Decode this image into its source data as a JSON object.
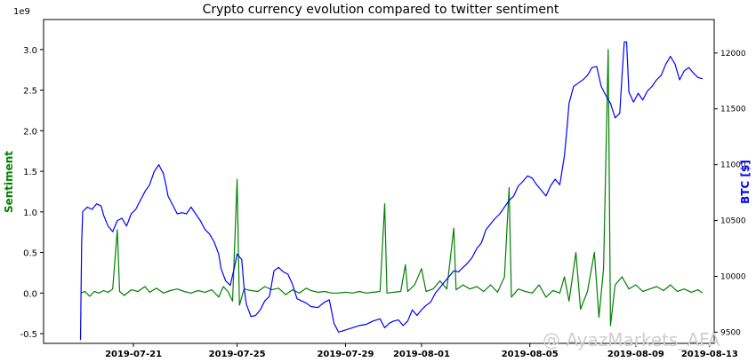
{
  "chart_data": {
    "type": "line",
    "title": "Crypto currency evolution compared to twitter sentiment",
    "xlabel": "",
    "x_ticks": [
      "2019-07-21",
      "2019-07-25",
      "2019-07-29",
      "2019-08-01",
      "2019-08-05",
      "2019-08-09",
      "2019-08-13"
    ],
    "y_left": {
      "label": "Sentiment",
      "multiplier_label": "1e9",
      "ticks": [
        "-0.5",
        "0.0",
        "0.5",
        "1.0",
        "1.5",
        "2.0",
        "2.5",
        "3.0"
      ],
      "range": [
        -0.62,
        3.37
      ],
      "color": "#008000"
    },
    "y_right": {
      "label": "BTC [$]",
      "ticks": [
        "9500",
        "10000",
        "10500",
        "11000",
        "11500",
        "12000"
      ],
      "range": [
        9400,
        12300
      ],
      "color": "#0000ff"
    },
    "x_range": [
      -1.6,
      27.5
    ],
    "series": [
      {
        "name": "BTC [$]",
        "axis": "right",
        "color": "#0000ff",
        "points": [
          [
            0.0,
            9430
          ],
          [
            0.05,
            10300
          ],
          [
            0.1,
            10580
          ],
          [
            0.3,
            10620
          ],
          [
            0.5,
            10600
          ],
          [
            0.7,
            10650
          ],
          [
            0.9,
            10630
          ],
          [
            1.0,
            10550
          ],
          [
            1.2,
            10450
          ],
          [
            1.4,
            10400
          ],
          [
            1.6,
            10500
          ],
          [
            1.8,
            10520
          ],
          [
            2.0,
            10450
          ],
          [
            2.2,
            10560
          ],
          [
            2.4,
            10600
          ],
          [
            2.6,
            10680
          ],
          [
            2.8,
            10760
          ],
          [
            3.0,
            10820
          ],
          [
            3.2,
            10940
          ],
          [
            3.4,
            11000
          ],
          [
            3.6,
            10920
          ],
          [
            3.7,
            10830
          ],
          [
            3.8,
            10720
          ],
          [
            3.9,
            10680
          ],
          [
            4.0,
            10640
          ],
          [
            4.2,
            10560
          ],
          [
            4.4,
            10570
          ],
          [
            4.6,
            10560
          ],
          [
            4.8,
            10620
          ],
          [
            5.0,
            10560
          ],
          [
            5.2,
            10500
          ],
          [
            5.4,
            10420
          ],
          [
            5.6,
            10380
          ],
          [
            5.8,
            10310
          ],
          [
            6.0,
            10200
          ],
          [
            6.1,
            10070
          ],
          [
            6.3,
            9960
          ],
          [
            6.5,
            9920
          ],
          [
            6.7,
            10100
          ],
          [
            6.8,
            10200
          ],
          [
            7.0,
            10150
          ],
          [
            7.1,
            9900
          ],
          [
            7.2,
            9750
          ],
          [
            7.4,
            9640
          ],
          [
            7.6,
            9650
          ],
          [
            7.8,
            9700
          ],
          [
            8.0,
            9780
          ],
          [
            8.2,
            9820
          ],
          [
            8.4,
            10050
          ],
          [
            8.6,
            10080
          ],
          [
            8.8,
            10040
          ],
          [
            9.0,
            10020
          ],
          [
            9.2,
            9930
          ],
          [
            9.4,
            9800
          ],
          [
            9.6,
            9780
          ],
          [
            9.8,
            9760
          ],
          [
            10.0,
            9730
          ],
          [
            10.3,
            9720
          ],
          [
            10.6,
            9770
          ],
          [
            10.8,
            9790
          ],
          [
            11.0,
            9580
          ],
          [
            11.2,
            9500
          ],
          [
            11.5,
            9520
          ],
          [
            11.8,
            9540
          ],
          [
            12.1,
            9560
          ],
          [
            12.4,
            9570
          ],
          [
            12.7,
            9600
          ],
          [
            13.0,
            9620
          ],
          [
            13.2,
            9540
          ],
          [
            13.4,
            9580
          ],
          [
            13.6,
            9600
          ],
          [
            13.8,
            9610
          ],
          [
            14.0,
            9560
          ],
          [
            14.2,
            9600
          ],
          [
            14.4,
            9700
          ],
          [
            14.6,
            9650
          ],
          [
            14.8,
            9700
          ],
          [
            15.0,
            9740
          ],
          [
            15.2,
            9770
          ],
          [
            15.4,
            9850
          ],
          [
            15.6,
            9900
          ],
          [
            15.8,
            9950
          ],
          [
            16.0,
            10000
          ],
          [
            16.2,
            10050
          ],
          [
            16.4,
            10040
          ],
          [
            16.6,
            10080
          ],
          [
            16.8,
            10120
          ],
          [
            17.0,
            10170
          ],
          [
            17.2,
            10250
          ],
          [
            17.4,
            10300
          ],
          [
            17.6,
            10420
          ],
          [
            17.8,
            10470
          ],
          [
            18.0,
            10520
          ],
          [
            18.2,
            10560
          ],
          [
            18.4,
            10620
          ],
          [
            18.6,
            10680
          ],
          [
            18.8,
            10720
          ],
          [
            19.0,
            10810
          ],
          [
            19.2,
            10850
          ],
          [
            19.4,
            10900
          ],
          [
            19.6,
            10880
          ],
          [
            19.8,
            10820
          ],
          [
            20.0,
            10770
          ],
          [
            20.2,
            10720
          ],
          [
            20.4,
            10810
          ],
          [
            20.6,
            10870
          ],
          [
            20.8,
            10820
          ],
          [
            21.0,
            11080
          ],
          [
            21.1,
            11300
          ],
          [
            21.2,
            11550
          ],
          [
            21.4,
            11700
          ],
          [
            21.6,
            11730
          ],
          [
            21.8,
            11760
          ],
          [
            22.0,
            11800
          ],
          [
            22.2,
            11870
          ],
          [
            22.4,
            11880
          ],
          [
            22.6,
            11700
          ],
          [
            22.8,
            11620
          ],
          [
            23.0,
            11550
          ],
          [
            23.2,
            11420
          ],
          [
            23.4,
            11460
          ],
          [
            23.5,
            11800
          ],
          [
            23.6,
            12100
          ],
          [
            23.7,
            12100
          ],
          [
            23.8,
            11650
          ],
          [
            24.0,
            11560
          ],
          [
            24.2,
            11640
          ],
          [
            24.4,
            11580
          ],
          [
            24.6,
            11660
          ],
          [
            24.8,
            11700
          ],
          [
            25.0,
            11760
          ],
          [
            25.2,
            11800
          ],
          [
            25.4,
            11900
          ],
          [
            25.6,
            11970
          ],
          [
            25.8,
            11900
          ],
          [
            26.0,
            11760
          ],
          [
            26.2,
            11840
          ],
          [
            26.4,
            11870
          ],
          [
            26.6,
            11820
          ],
          [
            26.8,
            11780
          ],
          [
            27.0,
            11770
          ]
        ]
      },
      {
        "name": "Sentiment",
        "axis": "left",
        "color": "#008000",
        "points": [
          [
            0.0,
            0.0
          ],
          [
            0.2,
            0.02
          ],
          [
            0.4,
            -0.04
          ],
          [
            0.6,
            0.02
          ],
          [
            0.8,
            0.0
          ],
          [
            1.0,
            0.03
          ],
          [
            1.2,
            0.01
          ],
          [
            1.4,
            0.05
          ],
          [
            1.6,
            0.78
          ],
          [
            1.7,
            0.02
          ],
          [
            1.9,
            -0.03
          ],
          [
            2.2,
            0.04
          ],
          [
            2.5,
            0.02
          ],
          [
            2.8,
            0.08
          ],
          [
            3.0,
            0.01
          ],
          [
            3.3,
            0.06
          ],
          [
            3.6,
            0.0
          ],
          [
            3.9,
            0.03
          ],
          [
            4.2,
            0.05
          ],
          [
            4.5,
            0.02
          ],
          [
            4.8,
            0.0
          ],
          [
            5.1,
            0.03
          ],
          [
            5.4,
            0.01
          ],
          [
            5.7,
            0.04
          ],
          [
            6.0,
            -0.05
          ],
          [
            6.2,
            0.08
          ],
          [
            6.4,
            0.02
          ],
          [
            6.6,
            -0.1
          ],
          [
            6.8,
            1.4
          ],
          [
            6.9,
            -0.15
          ],
          [
            7.1,
            0.05
          ],
          [
            7.4,
            0.03
          ],
          [
            7.7,
            0.02
          ],
          [
            8.0,
            0.08
          ],
          [
            8.3,
            0.04
          ],
          [
            8.6,
            0.06
          ],
          [
            8.9,
            -0.02
          ],
          [
            9.2,
            0.04
          ],
          [
            9.5,
            0.0
          ],
          [
            9.8,
            0.06
          ],
          [
            10.0,
            0.03
          ],
          [
            10.3,
            0.01
          ],
          [
            10.6,
            0.02
          ],
          [
            10.9,
            0.0
          ],
          [
            11.2,
            0.0
          ],
          [
            11.5,
            0.01
          ],
          [
            11.8,
            0.0
          ],
          [
            12.1,
            0.02
          ],
          [
            12.4,
            0.0
          ],
          [
            12.7,
            0.01
          ],
          [
            13.0,
            0.02
          ],
          [
            13.2,
            1.1
          ],
          [
            13.3,
            0.0
          ],
          [
            13.6,
            0.01
          ],
          [
            13.9,
            0.02
          ],
          [
            14.1,
            0.35
          ],
          [
            14.2,
            0.02
          ],
          [
            14.5,
            0.1
          ],
          [
            14.8,
            0.3
          ],
          [
            15.0,
            0.02
          ],
          [
            15.3,
            0.05
          ],
          [
            15.6,
            0.15
          ],
          [
            15.9,
            0.05
          ],
          [
            16.2,
            0.8
          ],
          [
            16.3,
            0.04
          ],
          [
            16.6,
            0.1
          ],
          [
            16.9,
            0.05
          ],
          [
            17.2,
            0.08
          ],
          [
            17.5,
            0.02
          ],
          [
            17.8,
            0.1
          ],
          [
            18.1,
            0.01
          ],
          [
            18.4,
            0.2
          ],
          [
            18.6,
            1.3
          ],
          [
            18.7,
            -0.05
          ],
          [
            19.0,
            0.05
          ],
          [
            19.3,
            0.02
          ],
          [
            19.6,
            0.0
          ],
          [
            19.9,
            0.1
          ],
          [
            20.2,
            -0.05
          ],
          [
            20.5,
            0.03
          ],
          [
            20.8,
            0.0
          ],
          [
            21.0,
            0.2
          ],
          [
            21.2,
            -0.1
          ],
          [
            21.5,
            0.5
          ],
          [
            21.7,
            -0.2
          ],
          [
            22.0,
            0.02
          ],
          [
            22.3,
            0.5
          ],
          [
            22.5,
            -0.3
          ],
          [
            22.7,
            0.3
          ],
          [
            22.9,
            3.0
          ],
          [
            23.0,
            -0.4
          ],
          [
            23.2,
            0.1
          ],
          [
            23.5,
            0.2
          ],
          [
            23.8,
            0.05
          ],
          [
            24.1,
            0.1
          ],
          [
            24.4,
            0.02
          ],
          [
            24.7,
            0.05
          ],
          [
            25.0,
            0.08
          ],
          [
            25.3,
            0.03
          ],
          [
            25.6,
            0.1
          ],
          [
            25.9,
            0.02
          ],
          [
            26.2,
            0.05
          ],
          [
            26.5,
            0.01
          ],
          [
            26.8,
            0.04
          ],
          [
            27.0,
            0.0
          ]
        ]
      }
    ],
    "watermark": "@ AyazMarkets_AFA"
  }
}
